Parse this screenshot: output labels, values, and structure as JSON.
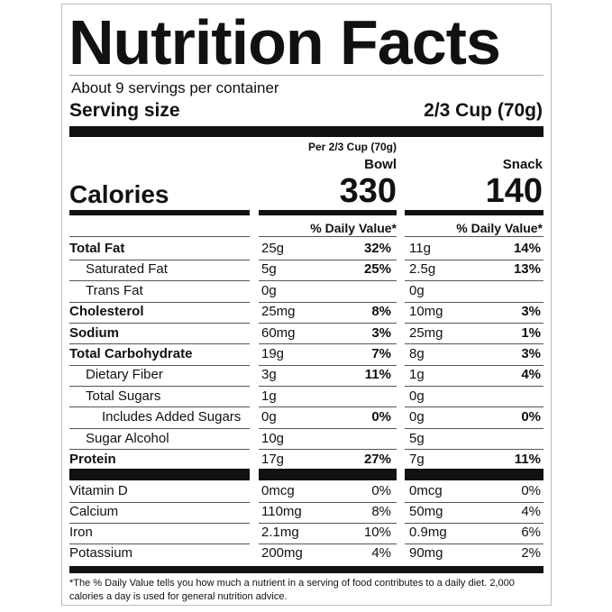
{
  "title": "Nutrition Facts",
  "servings": "About 9 servings per container",
  "serving_size": {
    "label": "Serving size",
    "value": "2/3 Cup (70g)"
  },
  "per_label": "Per 2/3 Cup (70g)",
  "columns": [
    "Bowl",
    "Snack"
  ],
  "calories": {
    "label": "Calories",
    "values": [
      "330",
      "140"
    ]
  },
  "dv_header": [
    "% Daily Value*",
    "% Daily Value*"
  ],
  "nutrients": [
    {
      "name": "Total Fat",
      "bold": true,
      "indent": 0,
      "bowl": [
        "25g",
        "32%"
      ],
      "snack": [
        "11g",
        "14%"
      ]
    },
    {
      "name": "Saturated Fat",
      "bold": false,
      "indent": 1,
      "bowl": [
        "5g",
        "25%"
      ],
      "snack": [
        "2.5g",
        "13%"
      ]
    },
    {
      "name": "Trans Fat",
      "bold": false,
      "indent": 1,
      "bowl": [
        "0g"
      ],
      "snack": [
        "0g"
      ]
    },
    {
      "name": "Cholesterol",
      "bold": true,
      "indent": 0,
      "bowl": [
        "25mg",
        "8%"
      ],
      "snack": [
        "10mg",
        "3%"
      ]
    },
    {
      "name": "Sodium",
      "bold": true,
      "indent": 0,
      "bowl": [
        "60mg",
        "3%"
      ],
      "snack": [
        "25mg",
        "1%"
      ]
    },
    {
      "name": "Total Carbohydrate",
      "bold": true,
      "indent": 0,
      "bowl": [
        "19g",
        "7%"
      ],
      "snack": [
        "8g",
        "3%"
      ]
    },
    {
      "name": "Dietary Fiber",
      "bold": false,
      "indent": 1,
      "bowl": [
        "3g",
        "11%"
      ],
      "snack": [
        "1g",
        "4%"
      ]
    },
    {
      "name": "Total Sugars",
      "bold": false,
      "indent": 1,
      "bowl": [
        "1g"
      ],
      "snack": [
        "0g"
      ]
    },
    {
      "name": "Includes Added Sugars",
      "bold": false,
      "indent": 2,
      "bowl": [
        "0g",
        "0%"
      ],
      "snack": [
        "0g",
        "0%"
      ]
    },
    {
      "name": "Sugar Alcohol",
      "bold": false,
      "indent": 1,
      "bowl": [
        "10g"
      ],
      "snack": [
        "5g"
      ]
    },
    {
      "name": "Protein",
      "bold": true,
      "indent": 0,
      "bowl": [
        "17g",
        "27%"
      ],
      "snack": [
        "7g",
        "11%"
      ]
    }
  ],
  "vitamins": [
    {
      "name": "Vitamin D",
      "bowl": [
        "0mcg",
        "0%"
      ],
      "snack": [
        "0mcg",
        "0%"
      ]
    },
    {
      "name": "Calcium",
      "bowl": [
        "110mg",
        "8%"
      ],
      "snack": [
        "50mg",
        "4%"
      ]
    },
    {
      "name": "Iron",
      "bowl": [
        "2.1mg",
        "10%"
      ],
      "snack": [
        "0.9mg",
        "6%"
      ]
    },
    {
      "name": "Potassium",
      "bowl": [
        "200mg",
        "4%"
      ],
      "snack": [
        "90mg",
        "2%"
      ]
    }
  ],
  "footnote": "*The % Daily Value tells you how much a nutrient in a serving of food contributes to a daily diet. 2,000 calories a day is used for general nutrition advice."
}
